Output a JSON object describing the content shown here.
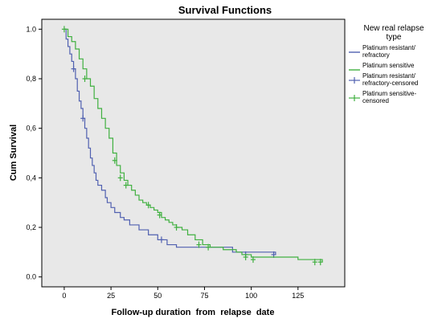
{
  "chart_data": {
    "type": "line",
    "title": "Survival Functions",
    "xlabel": "Follow-up duration  from  relapse  date",
    "ylabel": "Cum Survival",
    "xlim": [
      -12,
      150
    ],
    "ylim": [
      -0.04,
      1.04
    ],
    "xticks": [
      0,
      25,
      50,
      75,
      100,
      125
    ],
    "yticks": [
      0.0,
      0.2,
      0.4,
      0.6,
      0.8,
      1.0
    ],
    "xtick_labels": [
      "0",
      "25",
      "50",
      "75",
      "100",
      "125"
    ],
    "ytick_labels": [
      "0.0",
      "0,2",
      "0,4",
      "0,6",
      "0,8",
      "1.0"
    ],
    "grid": false,
    "background_color": "#e8e8e8",
    "legend": {
      "title": "New real relapse type",
      "position": "right-outside",
      "entries": [
        {
          "label": "Platinum resistant/ refractory",
          "kind": "line",
          "series": 0
        },
        {
          "label": "Platinum sensitive",
          "kind": "line",
          "series": 1
        },
        {
          "label": "Platinum resistant/ refractory-censored",
          "kind": "censor",
          "series": 0
        },
        {
          "label": "Platinum sensitive-censored",
          "kind": "censor",
          "series": 1
        }
      ]
    },
    "series": [
      {
        "name": "Platinum resistant/ refractory",
        "color": "#5060b0",
        "steps": [
          [
            0,
            1.0
          ],
          [
            1,
            0.96
          ],
          [
            2,
            0.93
          ],
          [
            3,
            0.9
          ],
          [
            4,
            0.87
          ],
          [
            5,
            0.84
          ],
          [
            6,
            0.8
          ],
          [
            7,
            0.75
          ],
          [
            8,
            0.71
          ],
          [
            9,
            0.68
          ],
          [
            10,
            0.64
          ],
          [
            11,
            0.6
          ],
          [
            12,
            0.56
          ],
          [
            13,
            0.52
          ],
          [
            14,
            0.48
          ],
          [
            15,
            0.45
          ],
          [
            16,
            0.42
          ],
          [
            17,
            0.39
          ],
          [
            18,
            0.37
          ],
          [
            20,
            0.35
          ],
          [
            22,
            0.32
          ],
          [
            23,
            0.3
          ],
          [
            25,
            0.28
          ],
          [
            27,
            0.26
          ],
          [
            30,
            0.24
          ],
          [
            32,
            0.23
          ],
          [
            35,
            0.21
          ],
          [
            40,
            0.19
          ],
          [
            45,
            0.17
          ],
          [
            50,
            0.15
          ],
          [
            55,
            0.13
          ],
          [
            60,
            0.12
          ],
          [
            90,
            0.1
          ],
          [
            113,
            0.09
          ]
        ],
        "censored": [
          [
            5,
            0.84
          ],
          [
            10,
            0.64
          ],
          [
            52,
            0.15
          ],
          [
            97,
            0.09
          ],
          [
            112,
            0.09
          ]
        ]
      },
      {
        "name": "Platinum sensitive",
        "color": "#40b040",
        "steps": [
          [
            0,
            1.0
          ],
          [
            2,
            0.97
          ],
          [
            4,
            0.95
          ],
          [
            6,
            0.92
          ],
          [
            8,
            0.88
          ],
          [
            10,
            0.84
          ],
          [
            12,
            0.8
          ],
          [
            14,
            0.77
          ],
          [
            16,
            0.72
          ],
          [
            18,
            0.68
          ],
          [
            20,
            0.64
          ],
          [
            22,
            0.6
          ],
          [
            24,
            0.56
          ],
          [
            26,
            0.5
          ],
          [
            28,
            0.45
          ],
          [
            30,
            0.42
          ],
          [
            32,
            0.39
          ],
          [
            34,
            0.37
          ],
          [
            36,
            0.35
          ],
          [
            38,
            0.33
          ],
          [
            40,
            0.31
          ],
          [
            42,
            0.3
          ],
          [
            44,
            0.29
          ],
          [
            46,
            0.28
          ],
          [
            48,
            0.27
          ],
          [
            50,
            0.26
          ],
          [
            52,
            0.24
          ],
          [
            54,
            0.23
          ],
          [
            56,
            0.22
          ],
          [
            58,
            0.21
          ],
          [
            60,
            0.2
          ],
          [
            63,
            0.19
          ],
          [
            66,
            0.17
          ],
          [
            70,
            0.15
          ],
          [
            74,
            0.13
          ],
          [
            78,
            0.12
          ],
          [
            85,
            0.11
          ],
          [
            92,
            0.1
          ],
          [
            95,
            0.09
          ],
          [
            100,
            0.08
          ],
          [
            125,
            0.07
          ],
          [
            138,
            0.06
          ]
        ],
        "censored": [
          [
            0,
            1.0
          ],
          [
            11,
            0.8
          ],
          [
            27,
            0.47
          ],
          [
            30,
            0.4
          ],
          [
            33,
            0.37
          ],
          [
            45,
            0.29
          ],
          [
            51,
            0.25
          ],
          [
            60,
            0.2
          ],
          [
            72,
            0.13
          ],
          [
            77,
            0.12
          ],
          [
            97,
            0.08
          ],
          [
            101,
            0.07
          ],
          [
            134,
            0.06
          ],
          [
            137,
            0.06
          ]
        ]
      }
    ]
  }
}
